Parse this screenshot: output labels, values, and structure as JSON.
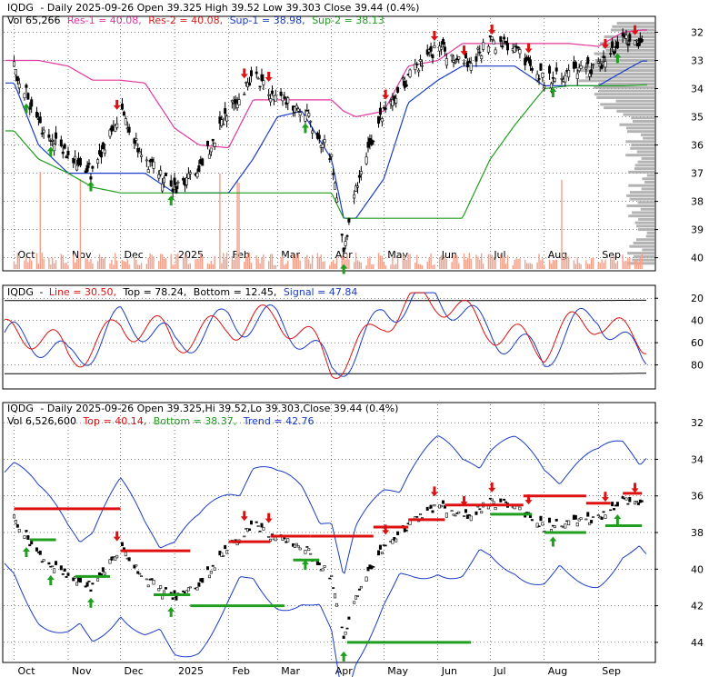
{
  "colors": {
    "candle": "#000000",
    "resistance": "#e0379f",
    "res2": "#d62020",
    "support": "#1a3cc8",
    "support2": "#1f9e1f",
    "volume_bar": "#f2a08a",
    "profile": "#a6a6a6",
    "up_arrow": "#1f9e1f",
    "down_arrow": "#dd1111",
    "stoch_line": "#1a3cc8",
    "stoch_signal": "#dd1111",
    "trend_line": "#dd1111",
    "trend_support": "#1f9e1f",
    "band": "#1a3cc8"
  },
  "months": [
    "Oct",
    "Nov",
    "Dec",
    "2025",
    "Feb",
    "Mar",
    "Apr",
    "May",
    "Jun",
    "Jul",
    "Aug",
    "Sep"
  ],
  "panel1": {
    "h1": {
      "sym": "IQDG",
      "info": "- Daily 2025-09-26 Open 39.325  High 39.52  Low 39.303  Close 39.44 (0.4%)"
    },
    "h2": {
      "vol": "Vol 65,266",
      "res1": "Res-1 = 40.08,",
      "res2": "Res-2 = 40.08,",
      "sup1": "Sup-1 = 38.98,",
      "sup2": "Sup-2 = 38.13"
    },
    "yticks": [
      "40",
      "39",
      "38",
      "37",
      "36",
      "35",
      "34",
      "33",
      "32"
    ]
  },
  "panel2": {
    "h": {
      "sym": "IQDG",
      "line": "Line = 30.50,",
      "top": "Top = 78.24,",
      "bottom": "Bottom = 12.45,",
      "signal": "Signal = 47.84"
    },
    "yticks": [
      "80",
      "60",
      "40",
      "20"
    ]
  },
  "panel3": {
    "h1": {
      "sym": "IQDG",
      "info": "- Daily 2025-09-26 Open 39.325,Hi 39.52,Lo 39.303,Close 39.44 (0.4%)"
    },
    "h2": {
      "vol": "Vol 6,526,600",
      "top": "Top = 40.14,",
      "bottom": "Bottom = 38.37,",
      "trend": "Trend = 42.76"
    },
    "yticks": [
      "44",
      "42",
      "40",
      "38",
      "36",
      "34",
      "32"
    ]
  },
  "chart_data": [
    {
      "type": "line",
      "title": "IQDG - Daily 2025-09-26",
      "x": [
        "2024-10-01",
        "2024-10-15",
        "2024-11-01",
        "2024-11-15",
        "2024-12-01",
        "2024-12-15",
        "2025-01-01",
        "2025-01-15",
        "2025-02-01",
        "2025-02-15",
        "2025-03-01",
        "2025-03-15",
        "2025-04-01",
        "2025-04-08",
        "2025-04-15",
        "2025-05-01",
        "2025-05-15",
        "2025-06-01",
        "2025-06-15",
        "2025-07-01",
        "2025-07-15",
        "2025-08-01",
        "2025-08-15",
        "2025-09-01",
        "2025-09-15",
        "2025-09-26"
      ],
      "series": [
        {
          "name": "Close",
          "values": [
            38.8,
            36.8,
            35.5,
            35.0,
            37.2,
            35.5,
            34.4,
            35.2,
            37.2,
            38.5,
            37.6,
            37.3,
            35.6,
            32.1,
            34.6,
            37.2,
            38.4,
            39.5,
            38.8,
            39.6,
            39.5,
            38.3,
            38.5,
            38.8,
            39.8,
            39.44
          ]
        },
        {
          "name": "Res-1",
          "values": [
            39.0,
            39.0,
            38.8,
            38.3,
            38.3,
            38.2,
            36.6,
            36.0,
            35.9,
            37.6,
            37.6,
            37.6,
            37.6,
            37.2,
            37.0,
            37.2,
            38.8,
            39.0,
            39.6,
            39.6,
            39.6,
            39.6,
            39.6,
            39.5,
            40.0,
            40.08
          ]
        },
        {
          "name": "Sup-1",
          "values": [
            38.2,
            36.0,
            35.0,
            35.0,
            35.0,
            35.0,
            34.3,
            34.3,
            34.3,
            35.5,
            37.0,
            37.2,
            35.5,
            33.4,
            33.4,
            34.8,
            37.5,
            38.3,
            38.8,
            38.8,
            38.8,
            38.1,
            38.1,
            38.1,
            38.6,
            38.98
          ]
        },
        {
          "name": "Sup-2",
          "values": [
            36.5,
            35.5,
            35.0,
            34.5,
            34.3,
            34.3,
            34.3,
            34.3,
            34.3,
            34.3,
            34.3,
            34.3,
            34.3,
            33.4,
            33.4,
            33.4,
            33.4,
            33.4,
            33.4,
            35.5,
            36.7,
            38.0,
            38.1,
            38.1,
            38.1,
            38.13
          ]
        }
      ],
      "ylim": [
        31.6,
        40.5
      ],
      "yticks": [
        32,
        33,
        34,
        35,
        36,
        37,
        38,
        39,
        40
      ]
    },
    {
      "type": "line",
      "title": "IQDG - Line / Signal",
      "x": [
        "2024-10-01",
        "2024-11-01",
        "2024-12-01",
        "2025-01-01",
        "2025-02-01",
        "2025-03-01",
        "2025-04-01",
        "2025-05-01",
        "2025-06-01",
        "2025-07-01",
        "2025-08-01",
        "2025-09-01",
        "2025-09-26"
      ],
      "series": [
        {
          "name": "Line",
          "values": [
            40,
            25,
            65,
            30,
            70,
            55,
            15,
            70,
            75,
            60,
            20,
            70,
            30.5
          ]
        },
        {
          "name": "Signal",
          "values": [
            45,
            30,
            60,
            35,
            65,
            58,
            20,
            65,
            72,
            62,
            30,
            65,
            47.84
          ]
        },
        {
          "name": "Top",
          "values": [
            78,
            78,
            78,
            78,
            78,
            78,
            78,
            78,
            78,
            78,
            78,
            78,
            78.24
          ]
        },
        {
          "name": "Bottom",
          "values": [
            12,
            12,
            12,
            12,
            12,
            12,
            12,
            12,
            12,
            12,
            12,
            12,
            12.45
          ]
        }
      ],
      "ylim": [
        0,
        90
      ],
      "yticks": [
        20,
        40,
        60,
        80
      ]
    },
    {
      "type": "line",
      "title": "IQDG - Daily 2025-09-26",
      "x": [
        "2024-10-01",
        "2024-11-01",
        "2024-12-01",
        "2025-01-01",
        "2025-02-01",
        "2025-03-01",
        "2025-04-01",
        "2025-05-01",
        "2025-06-01",
        "2025-07-01",
        "2025-08-01",
        "2025-09-01",
        "2025-09-26"
      ],
      "series": [
        {
          "name": "Close",
          "values": [
            38.8,
            35.5,
            37.2,
            34.4,
            37.2,
            37.6,
            32.1,
            37.2,
            39.5,
            39.6,
            38.3,
            38.8,
            39.44
          ]
        },
        {
          "name": "Top",
          "values": [
            40.14,
            40.14,
            40.14,
            40.14,
            40.14,
            40.14,
            40.14,
            40.14,
            40.14,
            40.14,
            40.14,
            40.14,
            40.14
          ]
        },
        {
          "name": "Bottom",
          "values": [
            38.37,
            38.37,
            38.37,
            38.37,
            38.37,
            38.37,
            38.37,
            38.37,
            38.37,
            38.37,
            38.37,
            38.37,
            38.37
          ]
        },
        {
          "name": "Trend",
          "values": [
            42,
            35,
            41,
            33,
            40,
            36,
            34,
            42,
            43,
            38,
            36,
            43,
            42.76
          ]
        }
      ],
      "ylim": [
        31.0,
        45.0
      ],
      "yticks": [
        32,
        34,
        36,
        38,
        40,
        42,
        44
      ]
    }
  ]
}
